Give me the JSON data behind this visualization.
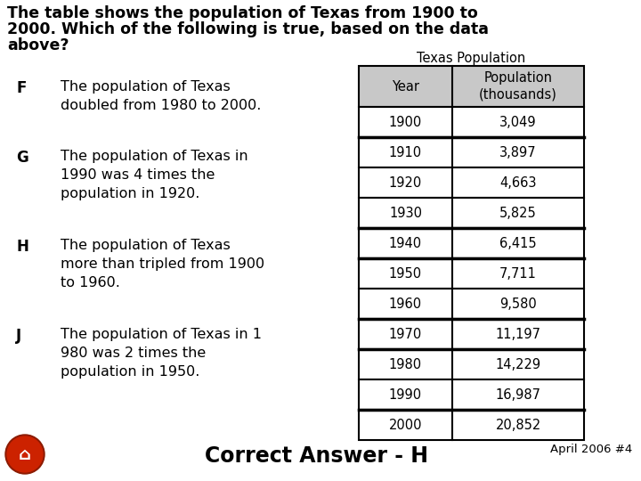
{
  "title_line1": "The table shows the population of Texas from 1900 to",
  "title_line2": "2000. Which of the following is true, based on the data",
  "title_line3": "above?",
  "table_title": "Texas Population",
  "col_headers": [
    "Year",
    "Population\n(thousands)"
  ],
  "rows": [
    [
      "1900",
      "3,049"
    ],
    [
      "1910",
      "3,897"
    ],
    [
      "1920",
      "4,663"
    ],
    [
      "1930",
      "5,825"
    ],
    [
      "1940",
      "6,415"
    ],
    [
      "1950",
      "7,711"
    ],
    [
      "1960",
      "9,580"
    ],
    [
      "1970",
      "11,197"
    ],
    [
      "1980",
      "14,229"
    ],
    [
      "1990",
      "16,987"
    ],
    [
      "2000",
      "20,852"
    ]
  ],
  "thick_borders_after": [
    1,
    4,
    5,
    7,
    8,
    10
  ],
  "option_labels": [
    "F",
    "G",
    "H",
    "J"
  ],
  "option_texts": [
    "The population of Texas\ndoubled from 1980 to 2000.",
    "The population of Texas in\n1990 was 4 times the\npopulation in 1920.",
    "The population of Texas\nmore than tripled from 1900\nto 1960.",
    "The population of Texas in 1\n980 was 2 times the\npopulation in 1950."
  ],
  "correct_answer": "Correct Answer - H",
  "date_label": "April 2006 #4",
  "bg_color": "#ffffff",
  "table_header_bg": "#c8c8c8",
  "table_border_color": "#000000",
  "question_font_size": 12.5,
  "option_label_font_size": 12,
  "option_text_font_size": 11.5,
  "table_font_size": 10.5,
  "answer_font_size": 17,
  "home_button_color": "#cc2200"
}
